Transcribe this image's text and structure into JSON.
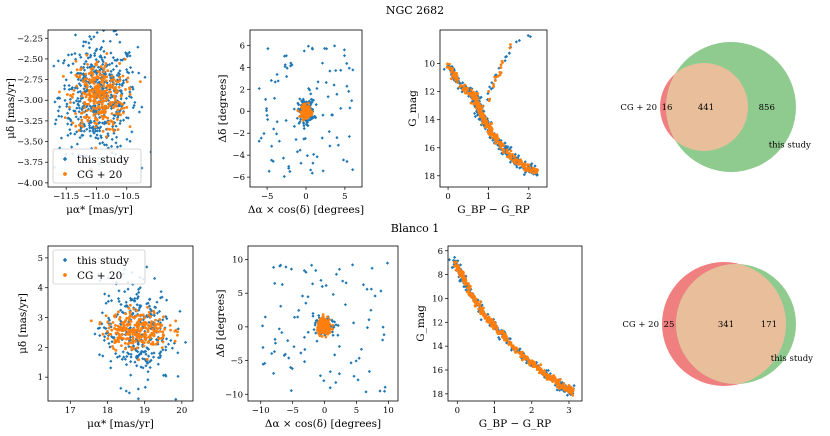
{
  "colors": {
    "this_study": "#1f77b4",
    "cg20": "#ff7f0e",
    "venn_left": "#f08080",
    "venn_right": "#8fcb8f",
    "venn_overlap": "#e8be9b"
  },
  "legend_labels": [
    "this study",
    "CG + 20"
  ],
  "chart_data": [
    {
      "panel": "NGC 2682 proper motions",
      "type": "scatter",
      "title": "NGC 2682",
      "xlabel": "μα* [mas/yr]",
      "ylabel": "μδ [mas/yr]",
      "xlim": [
        -11.8,
        -10.1
      ],
      "ylim": [
        -4.05,
        -2.15
      ],
      "xticks": [
        -11.5,
        -11.0,
        -10.5
      ],
      "xtick_labels": [
        "−11.5",
        "−11.0",
        "−10.5"
      ],
      "yticks": [
        -2.25,
        -2.5,
        -2.75,
        -3.0,
        -3.25,
        -3.5,
        -3.75,
        -4.0
      ],
      "ytick_labels": [
        "−2.25",
        "−2.50",
        "−2.75",
        "−3.00",
        "−3.25",
        "−3.50",
        "−3.75",
        "−4.00"
      ],
      "legend": "lower-left",
      "series": [
        {
          "name": "this study",
          "distribution": "cloud",
          "cx": -10.97,
          "cy": -2.95,
          "sx": 0.32,
          "sy": 0.34,
          "n": 520
        },
        {
          "name": "CG + 20",
          "distribution": "cloud",
          "cx": -10.97,
          "cy": -2.95,
          "sx": 0.22,
          "sy": 0.22,
          "n": 300
        }
      ]
    },
    {
      "panel": "NGC 2682 positions",
      "type": "scatter",
      "xlabel": "Δα × cos(δ) [degrees]",
      "ylabel": "Δδ [degrees]",
      "xlim": [
        -7.2,
        7.2
      ],
      "ylim": [
        -6.9,
        7.4
      ],
      "xticks": [
        -5,
        0,
        5
      ],
      "xtick_labels": [
        "−5",
        "0",
        "5"
      ],
      "yticks": [
        -6,
        -4,
        -2,
        0,
        2,
        4,
        6
      ],
      "ytick_labels": [
        "−6",
        "−4",
        "−2",
        "0",
        "2",
        "4",
        "6"
      ],
      "series": [
        {
          "name": "this study",
          "distribution": "halo",
          "cx": 0,
          "cy": 0,
          "sx": 3.0,
          "sy": 3.0,
          "n": 260,
          "core_n": 160,
          "core_s": 0.5
        },
        {
          "name": "CG + 20",
          "distribution": "cloud",
          "cx": 0,
          "cy": 0,
          "sx": 0.28,
          "sy": 0.28,
          "n": 200
        }
      ]
    },
    {
      "panel": "NGC 2682 CMD",
      "type": "scatter",
      "xlabel": "G_BP − G_RP",
      "ylabel": "G_mag",
      "xlim": [
        -0.2,
        2.45
      ],
      "ylim": [
        18.8,
        7.6
      ],
      "xticks": [
        0,
        1,
        2
      ],
      "xtick_labels": [
        "0",
        "1",
        "2"
      ],
      "yticks": [
        10,
        12,
        14,
        16,
        18
      ],
      "ytick_labels": [
        "10",
        "12",
        "14",
        "16",
        "18"
      ],
      "sequence": [
        [
          0.0,
          10.0
        ],
        [
          0.3,
          11.6
        ],
        [
          0.65,
          12.3
        ],
        [
          0.75,
          12.9
        ],
        [
          0.82,
          13.6
        ],
        [
          0.95,
          14.3
        ],
        [
          1.1,
          15.0
        ],
        [
          1.3,
          15.8
        ],
        [
          1.55,
          16.6
        ],
        [
          1.85,
          17.3
        ],
        [
          2.2,
          17.8
        ]
      ],
      "giant_branch": [
        [
          0.95,
          12.9
        ],
        [
          1.05,
          12.0
        ],
        [
          1.15,
          11.3
        ],
        [
          1.25,
          10.7
        ],
        [
          1.35,
          10.0
        ],
        [
          1.45,
          9.4
        ],
        [
          1.55,
          8.6
        ],
        [
          2.1,
          8.0
        ]
      ],
      "series": [
        {
          "name": "this study",
          "n": 360
        },
        {
          "name": "CG + 20",
          "n": 300
        }
      ]
    },
    {
      "panel": "Blanco 1 proper motions",
      "type": "scatter",
      "title": "Blanco 1",
      "xlabel": "μα* [mas/yr]",
      "ylabel": "μδ [mas/yr]",
      "xlim": [
        16.4,
        20.3
      ],
      "ylim": [
        0.2,
        5.4
      ],
      "xticks": [
        17,
        18,
        19,
        20
      ],
      "xtick_labels": [
        "17",
        "18",
        "19",
        "20"
      ],
      "yticks": [
        1,
        2,
        3,
        4,
        5
      ],
      "ytick_labels": [
        "1",
        "2",
        "3",
        "4",
        "5"
      ],
      "legend": "upper-left",
      "series": [
        {
          "name": "this study",
          "distribution": "cloud",
          "cx": 18.75,
          "cy": 2.55,
          "sx": 0.48,
          "sy": 0.9,
          "n": 300
        },
        {
          "name": "CG + 20",
          "distribution": "cloud",
          "cx": 18.8,
          "cy": 2.6,
          "sx": 0.42,
          "sy": 0.33,
          "n": 260
        }
      ]
    },
    {
      "panel": "Blanco 1 positions",
      "type": "scatter",
      "xlabel": "Δα × cos(δ) [degrees]",
      "ylabel": "Δδ [degrees]",
      "xlim": [
        -12,
        11.5
      ],
      "ylim": [
        -11,
        12
      ],
      "xticks": [
        -10,
        -5,
        0,
        5,
        10
      ],
      "xtick_labels": [
        "−10",
        "−5",
        "0",
        "5",
        "10"
      ],
      "yticks": [
        -10,
        -5,
        0,
        5,
        10
      ],
      "ytick_labels": [
        "−10",
        "−5",
        "0",
        "5",
        "10"
      ],
      "series": [
        {
          "name": "this study",
          "distribution": "halo",
          "cx": 0,
          "cy": 0,
          "sx": 5.0,
          "sy": 4.5,
          "n": 150,
          "core_n": 60,
          "core_s": 0.9
        },
        {
          "name": "CG + 20",
          "distribution": "cloud",
          "cx": 0,
          "cy": 0,
          "sx": 0.55,
          "sy": 0.55,
          "n": 200
        }
      ]
    },
    {
      "panel": "Blanco 1 CMD",
      "type": "scatter",
      "xlabel": "G_BP − G_RP",
      "ylabel": "G_mag",
      "xlim": [
        -0.25,
        3.35
      ],
      "ylim": [
        18.6,
        5.6
      ],
      "xticks": [
        0,
        1,
        2,
        3
      ],
      "xtick_labels": [
        "0",
        "1",
        "2",
        "3"
      ],
      "yticks": [
        6,
        8,
        10,
        12,
        14,
        16,
        18
      ],
      "ytick_labels": [
        "6",
        "8",
        "10",
        "12",
        "14",
        "16",
        "18"
      ],
      "sequence": [
        [
          -0.1,
          6.7
        ],
        [
          0.1,
          8.0
        ],
        [
          0.35,
          9.5
        ],
        [
          0.6,
          10.8
        ],
        [
          0.9,
          12.0
        ],
        [
          1.25,
          13.2
        ],
        [
          1.6,
          14.3
        ],
        [
          2.0,
          15.4
        ],
        [
          2.4,
          16.4
        ],
        [
          2.7,
          17.1
        ],
        [
          2.95,
          17.6
        ],
        [
          3.1,
          17.8
        ]
      ],
      "series": [
        {
          "name": "this study",
          "n": 260
        },
        {
          "name": "CG + 20",
          "n": 360
        }
      ]
    },
    {
      "panel": "NGC 2682 overlap",
      "type": "venn",
      "left_label": "CG + 20",
      "right_label": "this study",
      "left_only": "16",
      "both": "441",
      "right_only": "856"
    },
    {
      "panel": "Blanco 1 overlap",
      "type": "venn",
      "left_label": "CG + 20",
      "right_label": "this study",
      "left_only": "25",
      "both": "341",
      "right_only": "171"
    }
  ]
}
